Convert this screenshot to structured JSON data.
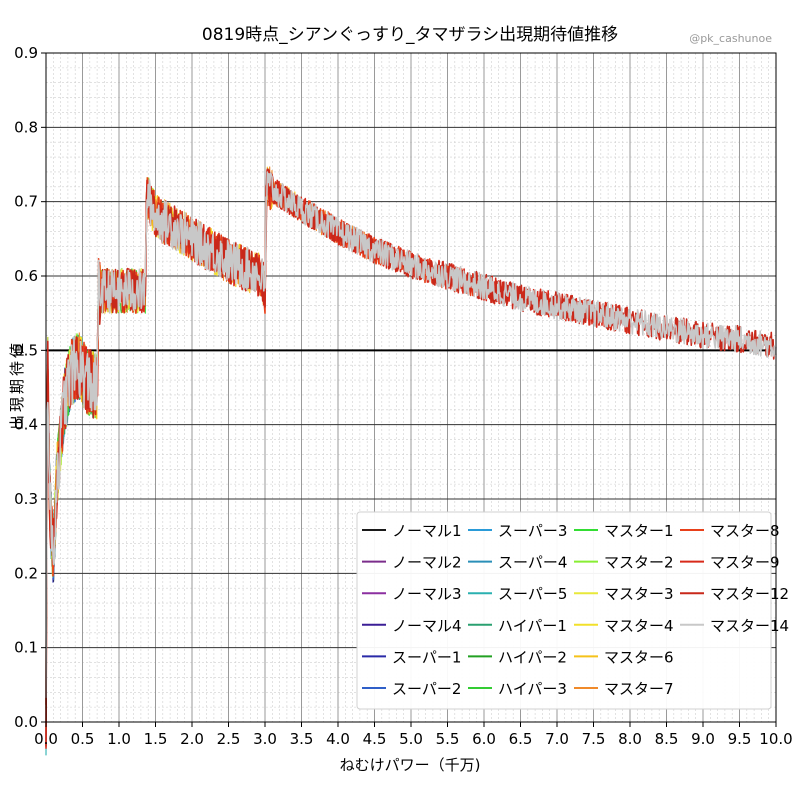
{
  "chart_data": {
    "type": "line",
    "title": "0819時点_シアンぐっすり_タマザラシ出現期待値推移",
    "credit": "@pk_cashunoe",
    "xlabel": "ねむけパワー（千万)",
    "ylabel": "出現期待値",
    "xlim": [
      0.0,
      10.0
    ],
    "ylim": [
      0.0,
      0.9
    ],
    "x_ticks": [
      "0.0",
      "0.5",
      "1.0",
      "1.5",
      "2.0",
      "2.5",
      "3.0",
      "3.5",
      "4.0",
      "4.5",
      "5.0",
      "5.5",
      "6.0",
      "6.5",
      "7.0",
      "7.5",
      "8.0",
      "8.5",
      "9.0",
      "9.5",
      "10.0"
    ],
    "y_ticks": [
      "0.0",
      "0.1",
      "0.2",
      "0.3",
      "0.4",
      "0.5",
      "0.6",
      "0.7",
      "0.8",
      "0.9"
    ],
    "grid": true,
    "reference_line_y": 0.5,
    "legend_position": "lower-right",
    "trend_points": [
      [
        0.0,
        0.0
      ],
      [
        0.02,
        0.5
      ],
      [
        0.05,
        0.3
      ],
      [
        0.1,
        0.22
      ],
      [
        0.15,
        0.33
      ],
      [
        0.25,
        0.43
      ],
      [
        0.35,
        0.47
      ],
      [
        0.45,
        0.48
      ],
      [
        0.55,
        0.46
      ],
      [
        0.7,
        0.45
      ],
      [
        0.72,
        0.58
      ],
      [
        1.0,
        0.58
      ],
      [
        1.36,
        0.58
      ],
      [
        1.38,
        0.71
      ],
      [
        1.5,
        0.68
      ],
      [
        2.0,
        0.65
      ],
      [
        2.5,
        0.62
      ],
      [
        2.95,
        0.6
      ],
      [
        3.0,
        0.58
      ],
      [
        3.02,
        0.72
      ],
      [
        3.5,
        0.69
      ],
      [
        4.0,
        0.66
      ],
      [
        4.5,
        0.635
      ],
      [
        5.0,
        0.615
      ],
      [
        5.5,
        0.6
      ],
      [
        6.0,
        0.585
      ],
      [
        6.5,
        0.57
      ],
      [
        7.0,
        0.56
      ],
      [
        7.5,
        0.55
      ],
      [
        8.0,
        0.54
      ],
      [
        8.5,
        0.53
      ],
      [
        9.0,
        0.52
      ],
      [
        9.5,
        0.515
      ],
      [
        10.0,
        0.505
      ]
    ],
    "series": [
      {
        "name": "ノーマル1",
        "color": "#1a1a1a",
        "x_end": 0.15
      },
      {
        "name": "ノーマル2",
        "color": "#7b2d8b",
        "x_end": 0.25
      },
      {
        "name": "ノーマル3",
        "color": "#8b2fa0",
        "x_end": 0.35
      },
      {
        "name": "ノーマル4",
        "color": "#3b1e96",
        "x_end": 0.45
      },
      {
        "name": "スーパー1",
        "color": "#2a2aa8",
        "x_end": 0.5
      },
      {
        "name": "スーパー2",
        "color": "#2f5fc8",
        "x_end": 0.6
      },
      {
        "name": "スーパー3",
        "color": "#2a9bd8",
        "x_end": 0.7
      },
      {
        "name": "スーパー4",
        "color": "#2a8fb8",
        "x_end": 0.75
      },
      {
        "name": "スーパー5",
        "color": "#2ab0b0",
        "x_end": 0.8
      },
      {
        "name": "ハイパー1",
        "color": "#2aa070",
        "x_end": 0.9
      },
      {
        "name": "ハイパー2",
        "color": "#22a022",
        "x_end": 1.0
      },
      {
        "name": "ハイパー3",
        "color": "#33cc33",
        "x_end": 1.2
      },
      {
        "name": "マスター1",
        "color": "#33dd33",
        "x_end": 1.5
      },
      {
        "name": "マスター2",
        "color": "#88ee33",
        "x_end": 1.8
      },
      {
        "name": "マスター3",
        "color": "#e8e83a",
        "x_end": 2.3
      },
      {
        "name": "マスター4",
        "color": "#f2e02a",
        "x_end": 2.8
      },
      {
        "name": "マスター6",
        "color": "#f5c21a",
        "x_end": 3.5
      },
      {
        "name": "マスター7",
        "color": "#f08a2a",
        "x_end": 4.5
      },
      {
        "name": "マスター8",
        "color": "#e8401a",
        "x_end": 6.0
      },
      {
        "name": "マスター9",
        "color": "#d82a1a",
        "x_end": 8.0
      },
      {
        "name": "マスター12",
        "color": "#c8281a",
        "x_end": 10.0
      },
      {
        "name": "マスター14",
        "color": "#c8c8c8",
        "x_end": 10.0
      }
    ]
  }
}
